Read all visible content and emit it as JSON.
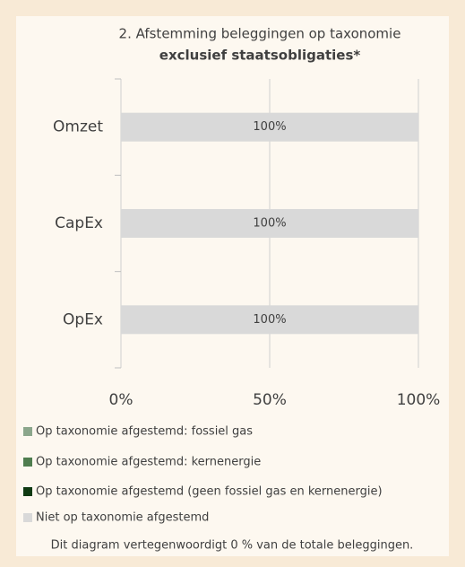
{
  "chart_data": {
    "type": "stacked_barh",
    "title": "2. Afstemming beleggingen op taxonomie",
    "subtitle": "exclusief staatsobligaties*",
    "categories": [
      "Omzet",
      "CapEx",
      "OpEx"
    ],
    "series": [
      {
        "name": "Op taxonomie afgestemd: fossiel gas",
        "color": "#8ba68b",
        "values": [
          0,
          0,
          0
        ]
      },
      {
        "name": "Op taxonomie afgestemd: kernenergie",
        "color": "#4f7d4f",
        "values": [
          0,
          0,
          0
        ]
      },
      {
        "name": "Op taxonomie afgestemd (geen fossiel gas en kernenergie)",
        "color": "#0f3a12",
        "values": [
          0,
          0,
          0
        ]
      },
      {
        "name": "Niet op taxonomie afgestemd",
        "color": "#d9d9d9",
        "values": [
          100,
          100,
          100
        ],
        "value_labels": [
          "100%",
          "100%",
          "100%"
        ]
      }
    ],
    "xlim": [
      0,
      100
    ],
    "xticks": [
      {
        "value": 0,
        "label": "0%"
      },
      {
        "value": 50,
        "label": "50%"
      },
      {
        "value": 100,
        "label": "100%"
      }
    ],
    "grid": true,
    "legend": "bottom",
    "note": "Dit diagram vertegenwoordigt 0 % van de totale beleggingen."
  }
}
